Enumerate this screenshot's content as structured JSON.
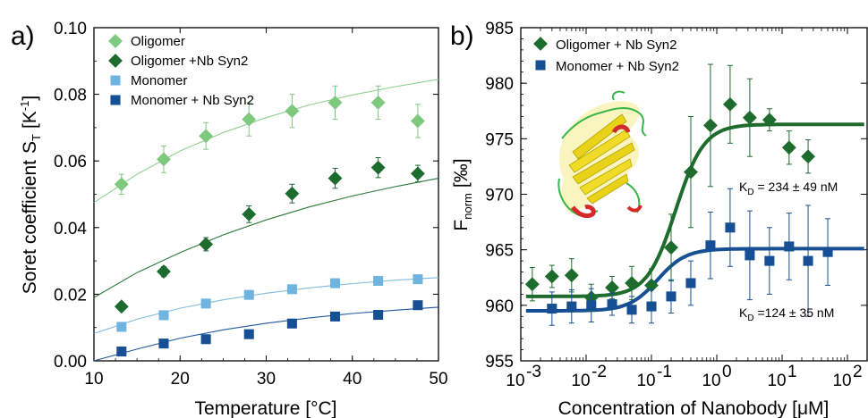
{
  "chart_data": [
    {
      "type": "scatter",
      "panel": "a)",
      "xlabel": "Temperature [°C]",
      "ylabel_main": "Soret coefficient",
      "ylabel_sym": "S",
      "ylabel_sub": "T",
      "ylabel_unit_open": "[K",
      "ylabel_unit_sup": "-1",
      "ylabel_unit_close": "]",
      "xlim": [
        10,
        50
      ],
      "ylim": [
        0,
        0.1
      ],
      "xticks": [
        "10",
        "20",
        "30",
        "40",
        "50"
      ],
      "yticks": [
        "0.00",
        "0.02",
        "0.04",
        "0.06",
        "0.08",
        "0.10"
      ],
      "grid": false,
      "legend_position": "top-left",
      "series": [
        {
          "name": "Oligomer",
          "marker": "diamond",
          "color": "#7fc97f",
          "fit_color": "#8fd08f",
          "x": [
            13.2,
            18.1,
            23,
            28,
            33,
            38,
            43,
            47.6
          ],
          "y": [
            0.053,
            0.0605,
            0.0675,
            0.0725,
            0.075,
            0.0775,
            0.0775,
            0.072
          ],
          "err": [
            0.003,
            0.004,
            0.004,
            0.005,
            0.005,
            0.005,
            0.005,
            0.005
          ],
          "fit": [
            [
              10,
              0.0475
            ],
            [
              15,
              0.056
            ],
            [
              20,
              0.063
            ],
            [
              25,
              0.0685
            ],
            [
              30,
              0.073
            ],
            [
              35,
              0.0768
            ],
            [
              40,
              0.0798
            ],
            [
              45,
              0.0823
            ],
            [
              50,
              0.0845
            ]
          ]
        },
        {
          "name": "Oligomer +Nb Syn2",
          "marker": "diamond",
          "color": "#1e6b2e",
          "fit_color": "#2b7a3a",
          "x": [
            13.2,
            18.1,
            23,
            28,
            33,
            38,
            43,
            47.6
          ],
          "y": [
            0.0163,
            0.0268,
            0.035,
            0.044,
            0.0502,
            0.0548,
            0.058,
            0.0562
          ],
          "err": [
            0,
            0.0015,
            0.002,
            0.0025,
            0.0028,
            0.003,
            0.003,
            0.0025
          ],
          "fit": [
            [
              10,
              0.019
            ],
            [
              15,
              0.0265
            ],
            [
              20,
              0.0325
            ],
            [
              25,
              0.0378
            ],
            [
              30,
              0.0423
            ],
            [
              35,
              0.0462
            ],
            [
              40,
              0.0495
            ],
            [
              45,
              0.0523
            ],
            [
              50,
              0.0548
            ]
          ]
        },
        {
          "name": "Monomer",
          "marker": "square",
          "color": "#6fb4e0",
          "fit_color": "#7fbce0",
          "x": [
            13.2,
            18.1,
            23,
            28,
            33,
            38,
            43,
            47.6
          ],
          "y": [
            0.0102,
            0.0137,
            0.0172,
            0.0198,
            0.0215,
            0.0233,
            0.024,
            0.0245
          ],
          "err": [
            0,
            0,
            0,
            0,
            0,
            0.001,
            0.001,
            0.001
          ],
          "fit": [
            [
              10,
              0.0082
            ],
            [
              15,
              0.0125
            ],
            [
              20,
              0.0158
            ],
            [
              25,
              0.0183
            ],
            [
              30,
              0.0203
            ],
            [
              35,
              0.0219
            ],
            [
              40,
              0.0232
            ],
            [
              45,
              0.0242
            ],
            [
              50,
              0.025
            ]
          ]
        },
        {
          "name": "Monomer + Nb Syn2",
          "marker": "square",
          "color": "#164f93",
          "fit_color": "#1e5aa0",
          "x": [
            13.2,
            18.1,
            23,
            28,
            33,
            38,
            43,
            47.6
          ],
          "y": [
            0.0028,
            0.0052,
            0.0065,
            0.008,
            0.0112,
            0.0133,
            0.0138,
            0.0167
          ],
          "err": [
            0,
            0,
            0,
            0,
            0,
            0,
            0,
            0
          ],
          "fit": [
            [
              10,
              0.0
            ],
            [
              15,
              0.0035
            ],
            [
              20,
              0.0068
            ],
            [
              25,
              0.0093
            ],
            [
              30,
              0.0113
            ],
            [
              35,
              0.0129
            ],
            [
              40,
              0.0142
            ],
            [
              45,
              0.0152
            ],
            [
              50,
              0.0161
            ]
          ]
        }
      ]
    },
    {
      "type": "scatter",
      "panel": "b)",
      "xlabel": "Concentration of Nanobody [μM]",
      "ylabel_main": "F",
      "ylabel_sub": "norm",
      "ylabel_unit": "[‰]",
      "xscale": "log",
      "xlim": [
        0.001,
        200
      ],
      "ylim": [
        955,
        985
      ],
      "xticks": [
        "10",
        "10",
        "10",
        "10",
        "10",
        "10"
      ],
      "xtick_exps": [
        "-3",
        "-2",
        "-1",
        "0",
        "1",
        "2"
      ],
      "yticks": [
        "955",
        "960",
        "965",
        "970",
        "975",
        "980",
        "985"
      ],
      "grid": false,
      "legend_position": "top-left",
      "annotations": [
        {
          "prefix": "K",
          "sub": "D",
          "text": " = 234 ± 49 nM"
        },
        {
          "prefix": "K",
          "sub": "D",
          "text": " =124 ± 35 nM"
        }
      ],
      "series": [
        {
          "name": "Oligomer + Nb Syn2",
          "marker": "diamond",
          "color": "#1e6b2e",
          "fit_color": "#1e6b2e",
          "x": [
            0.0015,
            0.003,
            0.006,
            0.012,
            0.025,
            0.05,
            0.1,
            0.2,
            0.4,
            0.8,
            1.6,
            3.2,
            6.4,
            12.8,
            25
          ],
          "y": [
            961.9,
            962.6,
            962.7,
            960.7,
            961.6,
            962.0,
            961.8,
            965.2,
            972.0,
            976.2,
            978.1,
            976.9,
            976.7,
            974.2,
            973.4
          ],
          "err": [
            1.5,
            1.0,
            1.5,
            1.2,
            1.0,
            1.5,
            1.5,
            3.0,
            5.0,
            5.5,
            3.5,
            3.5,
            1.0,
            1.5,
            1.5
          ],
          "kd": 0.234,
          "low": 960.8,
          "high": 976.3
        },
        {
          "name": "Monomer + Nb Syn2",
          "marker": "square",
          "color": "#164f93",
          "fit_color": "#164f93",
          "x": [
            0.003,
            0.006,
            0.012,
            0.025,
            0.05,
            0.1,
            0.2,
            0.4,
            0.8,
            1.6,
            3.2,
            6.4,
            12.8,
            25,
            50
          ],
          "y": [
            959.7,
            959.9,
            960.0,
            960.1,
            959.6,
            959.9,
            960.8,
            962.0,
            965.4,
            967.0,
            964.5,
            964.0,
            965.3,
            964.0,
            964.8
          ],
          "err": [
            1.5,
            1.5,
            1.5,
            1.0,
            1.2,
            1.5,
            1.5,
            2.0,
            3.0,
            3.5,
            4.0,
            3.0,
            3.0,
            5.0,
            3.0
          ],
          "kd": 0.124,
          "low": 959.5,
          "high": 965.1
        }
      ],
      "inset": "protein-structure-image"
    }
  ]
}
